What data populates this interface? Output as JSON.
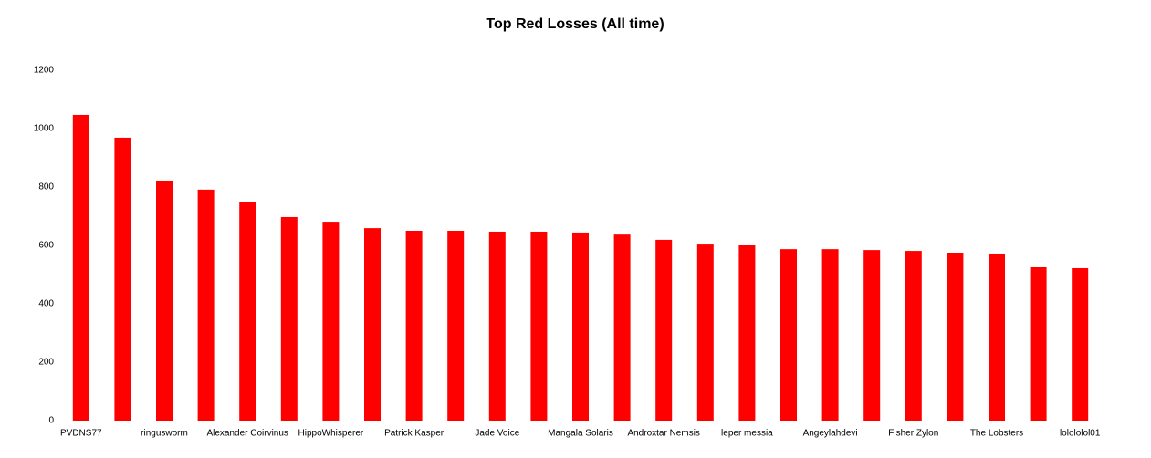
{
  "chart_data": {
    "type": "bar",
    "title": "Top Red Losses (All time)",
    "categories": [
      "PVDNS77",
      null,
      "ringusworm",
      null,
      "Alexander Coirvinus",
      null,
      "HippoWhisperer",
      null,
      "Patrick Kasper",
      null,
      "Jade Voice",
      null,
      "Mangala Solaris",
      null,
      "Androxtar Nemsis",
      null,
      "leper messia",
      null,
      "Angeylahdevi",
      null,
      "Fisher Zylon",
      null,
      "The Lobsters",
      null,
      "lolololol01"
    ],
    "values": [
      1047,
      969,
      822,
      791,
      750,
      697,
      681,
      659,
      650,
      650,
      647,
      647,
      644,
      637,
      619,
      606,
      603,
      587,
      587,
      584,
      581,
      575,
      572,
      525,
      522
    ],
    "color": "#ff0000",
    "ylim": [
      0,
      1200
    ],
    "yticks": [
      0,
      200,
      400,
      600,
      800,
      1000,
      1200
    ],
    "grid": false
  }
}
